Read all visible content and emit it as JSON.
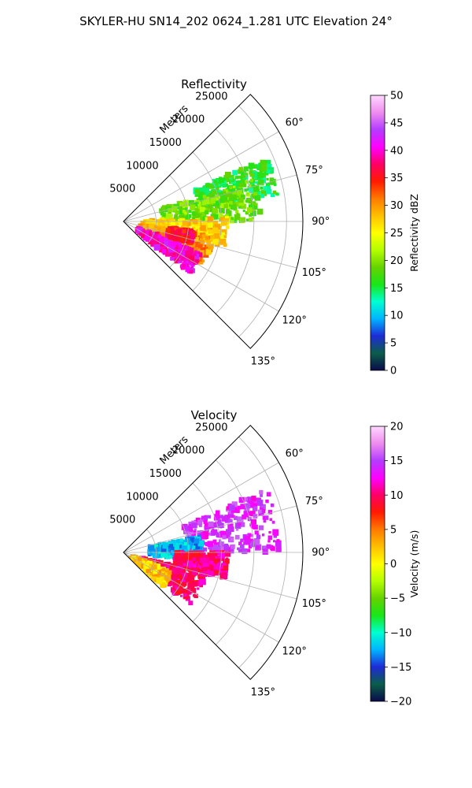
{
  "figure": {
    "title": "SKYLER-HU  SN14_202  0624_1.281 UTC Elevation 24°"
  },
  "chart_data": [
    {
      "type": "heatmap",
      "subtype": "polar-sector-ppi",
      "title": "Reflectivity",
      "radial_label": "Meters",
      "azimuth_range_deg": [
        45,
        135
      ],
      "azimuth_ticks": [
        60,
        75,
        90,
        105,
        120,
        135
      ],
      "azimuth_tick_labels": [
        "60°",
        "75°",
        "90°",
        "105°",
        "120°",
        "135°"
      ],
      "range_max_m": 27500,
      "range_ticks": [
        5000,
        10000,
        15000,
        20000,
        25000
      ],
      "range_tick_labels": [
        "5000",
        "10000",
        "15000",
        "20000",
        "25000"
      ],
      "grid": true,
      "colorbar": {
        "label": "Reflectivity dBZ",
        "min": 0,
        "max": 50,
        "ticks": [
          0,
          5,
          10,
          15,
          20,
          25,
          30,
          35,
          40,
          45,
          50
        ],
        "tick_labels": [
          "0",
          "5",
          "10",
          "15",
          "20",
          "25",
          "30",
          "35",
          "40",
          "45",
          "50"
        ],
        "colormap": "pyart-HomeyerRainbow",
        "stops": [
          "#0a0a4a",
          "#0b5e4a",
          "#1e2bd6",
          "#00b4ff",
          "#00ffd0",
          "#19e619",
          "#66d200",
          "#b4ff00",
          "#ffff00",
          "#ffc000",
          "#ff7a00",
          "#ff1a00",
          "#ff0066",
          "#ff00ff",
          "#b43cff",
          "#ee8cee",
          "#ffd8ff"
        ]
      },
      "regions": [
        {
          "az": [
            66,
            80
          ],
          "r": [
            12000,
            24000
          ],
          "value": 16
        },
        {
          "az": [
            72,
            90
          ],
          "r": [
            6000,
            21000
          ],
          "value": 19
        },
        {
          "az": [
            88,
            104
          ],
          "r": [
            3000,
            16000
          ],
          "value": 27
        },
        {
          "az": [
            100,
            118
          ],
          "r": [
            2500,
            14000
          ],
          "value": 30
        },
        {
          "az": [
            112,
            128
          ],
          "r": [
            2500,
            13000
          ],
          "value": 40
        },
        {
          "az": [
            98,
            108
          ],
          "r": [
            7000,
            11000
          ],
          "value": 36
        }
      ]
    },
    {
      "type": "heatmap",
      "subtype": "polar-sector-ppi",
      "title": "Velocity",
      "radial_label": "Meters",
      "azimuth_range_deg": [
        45,
        135
      ],
      "azimuth_ticks": [
        60,
        75,
        90,
        105,
        120,
        135
      ],
      "azimuth_tick_labels": [
        "60°",
        "75°",
        "90°",
        "105°",
        "120°",
        "135°"
      ],
      "range_max_m": 27500,
      "range_ticks": [
        5000,
        10000,
        15000,
        20000,
        25000
      ],
      "range_tick_labels": [
        "5000",
        "10000",
        "15000",
        "20000",
        "25000"
      ],
      "grid": true,
      "colorbar": {
        "label": "Velocity (m/s)",
        "min": -20,
        "max": 20,
        "ticks": [
          -20,
          -15,
          -10,
          -5,
          0,
          5,
          10,
          15,
          20
        ],
        "tick_labels": [
          "−20",
          "−15",
          "−10",
          "−5",
          "0",
          "5",
          "10",
          "15",
          "20"
        ],
        "colormap": "pyart-BuDRd",
        "stops": [
          "#0a0a4a",
          "#0b5e4a",
          "#1e2bd6",
          "#00b4ff",
          "#00ffd0",
          "#19e619",
          "#66d200",
          "#b4ff00",
          "#ffff00",
          "#ffc000",
          "#ff7a00",
          "#ff1a00",
          "#ff0066",
          "#ff00ff",
          "#b43cff",
          "#ee8cee",
          "#ffd8ff"
        ]
      },
      "regions": [
        {
          "az": [
            66,
            90
          ],
          "r": [
            10000,
            24000
          ],
          "value": 14
        },
        {
          "az": [
            78,
            96
          ],
          "r": [
            4000,
            12000
          ],
          "value": -12
        },
        {
          "az": [
            90,
            104
          ],
          "r": [
            8000,
            16000
          ],
          "value": 10
        },
        {
          "az": [
            104,
            128
          ],
          "r": [
            3000,
            13000
          ],
          "value": 10
        },
        {
          "az": [
            112,
            130
          ],
          "r": [
            1500,
            8000
          ],
          "value": 2
        }
      ]
    }
  ]
}
